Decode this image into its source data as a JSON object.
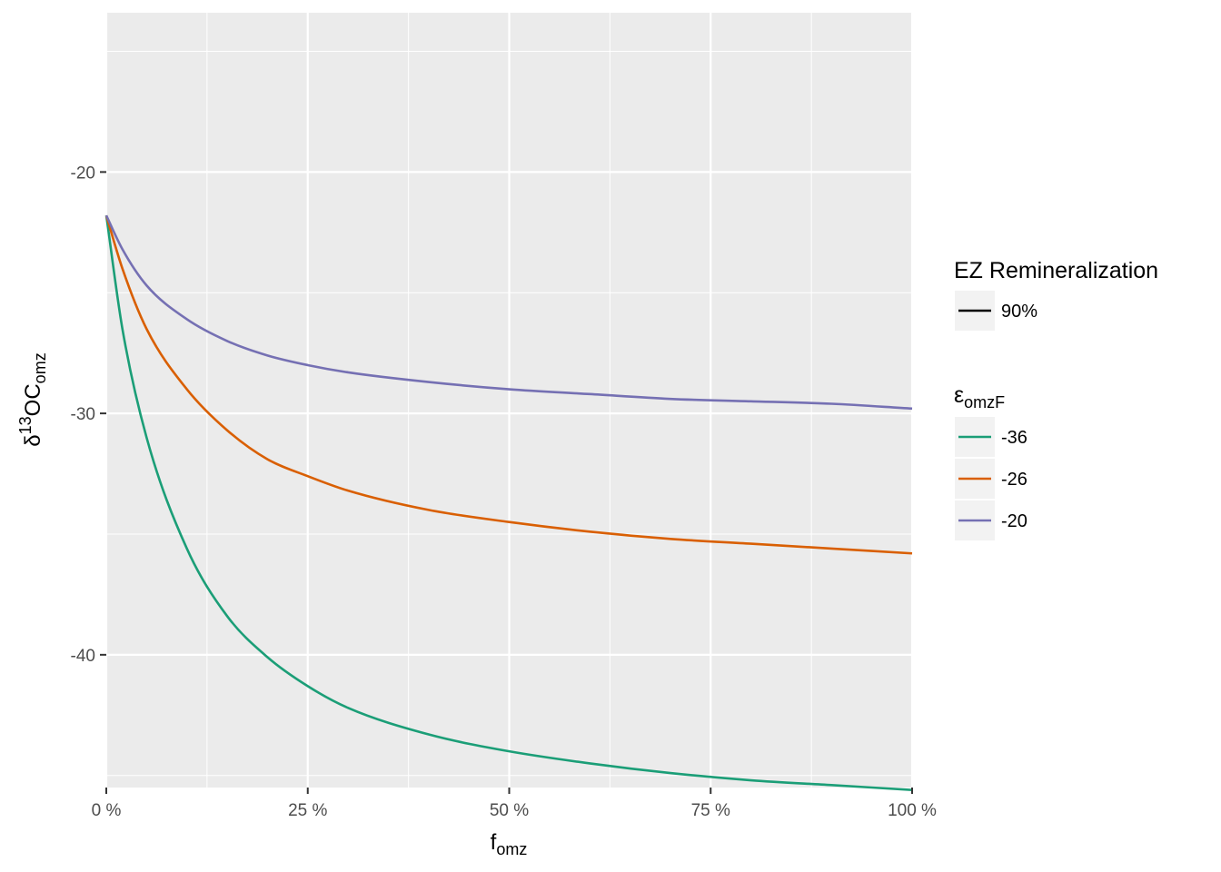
{
  "chart_data": {
    "type": "line",
    "xlabel": {
      "main": "f",
      "sub": "omz"
    },
    "ylabel": {
      "main": "δ",
      "sup": "13",
      "rest": "OC",
      "sub": "omz"
    },
    "x_ticks": [
      {
        "value": 0,
        "label": "0 %"
      },
      {
        "value": 0.25,
        "label": "25 %"
      },
      {
        "value": 0.5,
        "label": "50 %"
      },
      {
        "value": 0.75,
        "label": "75 %"
      },
      {
        "value": 1,
        "label": "100 %"
      }
    ],
    "y_ticks": [
      {
        "value": -20,
        "label": "-20"
      },
      {
        "value": -30,
        "label": "-30"
      },
      {
        "value": -40,
        "label": "-40"
      }
    ],
    "xlim": [
      0,
      1
    ],
    "ylim": [
      -45.5,
      -13.4
    ],
    "grid": true,
    "legend_position": "right",
    "legend_linetype": {
      "title": "EZ Remineralization",
      "items": [
        {
          "label": "90%",
          "color": "#000000"
        }
      ]
    },
    "legend_color": {
      "title": {
        "main": "ε",
        "sub": "omzF"
      },
      "items": [
        {
          "label": "-36",
          "color": "#1B9E77"
        },
        {
          "label": "-26",
          "color": "#D95F02"
        },
        {
          "label": "-20",
          "color": "#7570B3"
        }
      ]
    },
    "series": [
      {
        "name": "-36",
        "color": "#1B9E77",
        "x": [
          0,
          0.02,
          0.05,
          0.1,
          0.15,
          0.2,
          0.25,
          0.3,
          0.4,
          0.5,
          0.6,
          0.7,
          0.8,
          0.9,
          1.0
        ],
        "y": [
          -21.8,
          -26.5,
          -31.0,
          -35.6,
          -38.4,
          -40.1,
          -41.3,
          -42.2,
          -43.3,
          -44.0,
          -44.5,
          -44.9,
          -45.2,
          -45.4,
          -45.6
        ]
      },
      {
        "name": "-26",
        "color": "#D95F02",
        "x": [
          0,
          0.02,
          0.05,
          0.1,
          0.15,
          0.2,
          0.25,
          0.3,
          0.4,
          0.5,
          0.6,
          0.7,
          0.8,
          0.9,
          1.0
        ],
        "y": [
          -21.8,
          -24.0,
          -26.5,
          -29.0,
          -30.7,
          -31.9,
          -32.6,
          -33.2,
          -34.0,
          -34.5,
          -34.9,
          -35.2,
          -35.4,
          -35.6,
          -35.8
        ]
      },
      {
        "name": "-20",
        "color": "#7570B3",
        "x": [
          0,
          0.02,
          0.05,
          0.1,
          0.15,
          0.2,
          0.25,
          0.3,
          0.4,
          0.5,
          0.6,
          0.7,
          0.8,
          0.9,
          1.0
        ],
        "y": [
          -21.8,
          -23.2,
          -24.7,
          -26.1,
          -27.0,
          -27.6,
          -28.0,
          -28.3,
          -28.7,
          -29.0,
          -29.2,
          -29.4,
          -29.5,
          -29.6,
          -29.8
        ]
      }
    ]
  }
}
